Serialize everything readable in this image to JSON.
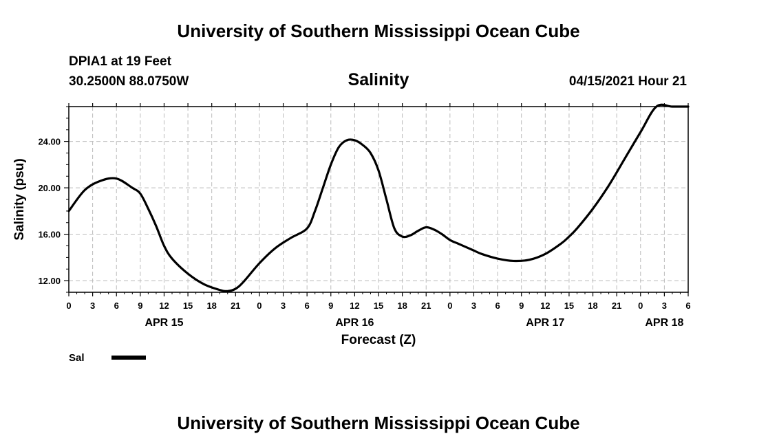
{
  "header": {
    "title": "University of Southern Mississippi Ocean Cube",
    "station": "DPIA1 at 19 Feet",
    "coords": "30.2500N  88.0750W",
    "variable": "Salinity",
    "datetime": "04/15/2021 Hour 21"
  },
  "footer": {
    "title": "University of Southern Mississippi Ocean Cube"
  },
  "colors": {
    "line": "#000000",
    "grid": "#bbbbbb",
    "frame": "#000000"
  },
  "chart_data": {
    "type": "line",
    "title": "Salinity",
    "xlabel": "Forecast (Z)",
    "ylabel": "Salinity (psu)",
    "xlim": [
      0,
      78
    ],
    "ylim": [
      11,
      27
    ],
    "grid": true,
    "x_ticks": [
      0,
      3,
      6,
      9,
      12,
      15,
      18,
      21,
      24,
      27,
      30,
      33,
      36,
      39,
      42,
      45,
      48,
      51,
      54,
      57,
      60,
      63,
      66,
      69,
      72,
      75,
      78
    ],
    "x_tick_labels": [
      "0",
      "3",
      "6",
      "9",
      "12",
      "15",
      "18",
      "21",
      "0",
      "3",
      "6",
      "9",
      "12",
      "15",
      "18",
      "21",
      "0",
      "3",
      "6",
      "9",
      "12",
      "15",
      "18",
      "21",
      "0",
      "3",
      "6"
    ],
    "y_ticks": [
      12,
      16,
      20,
      24
    ],
    "y_tick_labels": [
      "12.00",
      "16.00",
      "20.00",
      "24.00"
    ],
    "date_labels": [
      {
        "x": 12,
        "label": "APR 15"
      },
      {
        "x": 36,
        "label": "APR 16"
      },
      {
        "x": 60,
        "label": "APR 17"
      },
      {
        "x": 75,
        "label": "APR 18"
      }
    ],
    "legend": {
      "position": "bottom-left"
    },
    "series": [
      {
        "name": "Sal",
        "x": [
          0,
          2,
          4,
          6,
          8,
          9,
          10,
          11,
          12,
          13,
          15,
          17,
          19,
          20,
          21,
          22,
          24,
          26,
          28,
          30,
          31,
          32,
          33,
          34,
          35,
          36,
          37,
          38,
          39,
          40,
          41,
          42,
          43,
          44,
          45,
          46,
          47,
          48,
          49,
          50,
          51,
          52,
          54,
          56,
          58,
          60,
          62,
          63,
          64,
          66,
          68,
          70,
          72,
          74,
          76,
          78
        ],
        "y": [
          18.0,
          19.8,
          20.6,
          20.8,
          20.0,
          19.5,
          18.2,
          16.7,
          15.0,
          13.9,
          12.6,
          11.7,
          11.2,
          11.1,
          11.3,
          11.9,
          13.5,
          14.8,
          15.7,
          16.5,
          18.0,
          20.0,
          22.0,
          23.5,
          24.1,
          24.1,
          23.7,
          23.0,
          21.5,
          19.0,
          16.5,
          15.8,
          15.9,
          16.3,
          16.6,
          16.4,
          16.0,
          15.5,
          15.2,
          14.9,
          14.6,
          14.3,
          13.9,
          13.7,
          13.8,
          14.3,
          15.2,
          15.8,
          16.5,
          18.2,
          20.2,
          22.5,
          24.8,
          27.0,
          27.0,
          27.0
        ]
      }
    ]
  }
}
